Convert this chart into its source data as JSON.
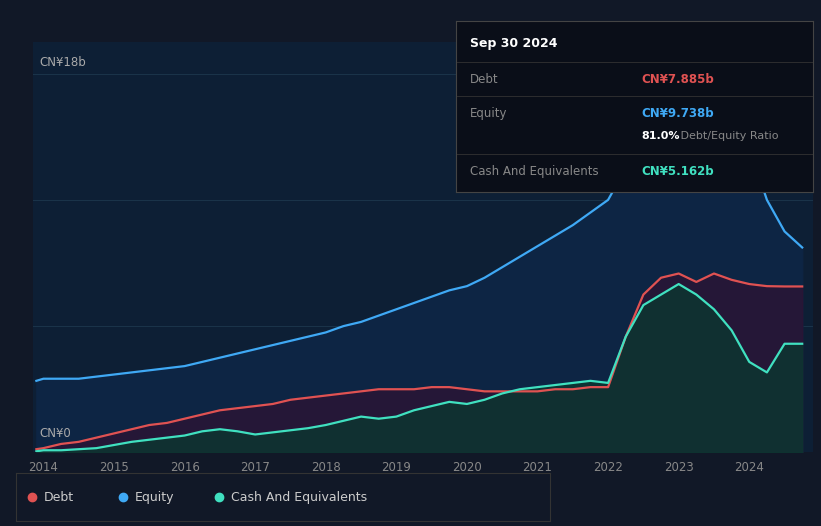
{
  "background_color": "#111827",
  "plot_bg_color": "#111827",
  "chart_area_color": "#0d1f35",
  "title_box_date": "Sep 30 2024",
  "tooltip": {
    "debt_label": "Debt",
    "debt_value": "CN¥7.885b",
    "equity_label": "Equity",
    "equity_value": "CN¥9.738b",
    "ratio_value": "81.0%",
    "ratio_label": " Debt/Equity Ratio",
    "cash_label": "Cash And Equivalents",
    "cash_value": "CN¥5.162b"
  },
  "y_label_top": "CN¥18b",
  "y_label_bottom": "CN¥0",
  "x_ticks": [
    2014,
    2015,
    2016,
    2017,
    2018,
    2019,
    2020,
    2021,
    2022,
    2023,
    2024
  ],
  "legend": [
    {
      "label": "Debt",
      "color": "#e05252"
    },
    {
      "label": "Equity",
      "color": "#3fa9f5"
    },
    {
      "label": "Cash And Equivalents",
      "color": "#40e0c0"
    }
  ],
  "debt_color": "#e05252",
  "equity_color": "#3fa9f5",
  "cash_color": "#40e0c0",
  "years": [
    2013.9,
    2014.0,
    2014.25,
    2014.5,
    2014.75,
    2015.0,
    2015.25,
    2015.5,
    2015.75,
    2016.0,
    2016.25,
    2016.5,
    2016.75,
    2017.0,
    2017.25,
    2017.5,
    2017.75,
    2018.0,
    2018.25,
    2018.5,
    2018.75,
    2019.0,
    2019.25,
    2019.5,
    2019.75,
    2020.0,
    2020.25,
    2020.5,
    2020.75,
    2021.0,
    2021.25,
    2021.5,
    2021.75,
    2022.0,
    2022.25,
    2022.5,
    2022.75,
    2023.0,
    2023.25,
    2023.5,
    2023.75,
    2024.0,
    2024.25,
    2024.5,
    2024.75
  ],
  "debt": [
    0.15,
    0.2,
    0.4,
    0.5,
    0.7,
    0.9,
    1.1,
    1.3,
    1.4,
    1.6,
    1.8,
    2.0,
    2.1,
    2.2,
    2.3,
    2.5,
    2.6,
    2.7,
    2.8,
    2.9,
    3.0,
    3.0,
    3.0,
    3.1,
    3.1,
    3.0,
    2.9,
    2.9,
    2.9,
    2.9,
    3.0,
    3.0,
    3.1,
    3.1,
    5.5,
    7.5,
    8.3,
    8.5,
    8.1,
    8.5,
    8.2,
    8.0,
    7.9,
    7.885,
    7.885
  ],
  "equity": [
    3.4,
    3.5,
    3.5,
    3.5,
    3.6,
    3.7,
    3.8,
    3.9,
    4.0,
    4.1,
    4.3,
    4.5,
    4.7,
    4.9,
    5.1,
    5.3,
    5.5,
    5.7,
    6.0,
    6.2,
    6.5,
    6.8,
    7.1,
    7.4,
    7.7,
    7.9,
    8.3,
    8.8,
    9.3,
    9.8,
    10.3,
    10.8,
    11.4,
    12.0,
    13.5,
    15.0,
    16.0,
    17.0,
    17.8,
    18.1,
    17.2,
    14.5,
    12.0,
    10.5,
    9.738
  ],
  "cash": [
    0.05,
    0.1,
    0.1,
    0.15,
    0.2,
    0.35,
    0.5,
    0.6,
    0.7,
    0.8,
    1.0,
    1.1,
    1.0,
    0.85,
    0.95,
    1.05,
    1.15,
    1.3,
    1.5,
    1.7,
    1.6,
    1.7,
    2.0,
    2.2,
    2.4,
    2.3,
    2.5,
    2.8,
    3.0,
    3.1,
    3.2,
    3.3,
    3.4,
    3.3,
    5.5,
    7.0,
    7.5,
    8.0,
    7.5,
    6.8,
    5.8,
    4.3,
    3.8,
    5.162,
    5.162
  ],
  "xlim": [
    2013.85,
    2024.9
  ],
  "ylim": [
    0,
    19.5
  ],
  "grid_lines": [
    6,
    12,
    18
  ]
}
